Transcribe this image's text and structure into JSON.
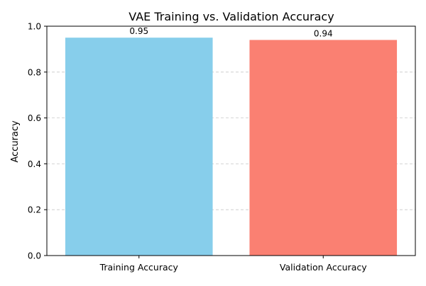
{
  "chart_data": {
    "type": "bar",
    "title": "VAE Training vs. Validation Accuracy",
    "xlabel": "",
    "ylabel": "Accuracy",
    "categories": [
      "Training Accuracy",
      "Validation Accuracy"
    ],
    "values": [
      0.95,
      0.94
    ],
    "data_labels": [
      "0.95",
      "0.94"
    ],
    "colors": [
      "#87CEEB",
      "#FA8072"
    ],
    "ylim": [
      0,
      1.0
    ],
    "yticks": [
      0.0,
      0.2,
      0.4,
      0.6,
      0.8,
      1.0
    ],
    "ytick_labels": [
      "0.0",
      "0.2",
      "0.4",
      "0.6",
      "0.8",
      "1.0"
    ],
    "grid": "y-axis dashed",
    "legend": "none"
  }
}
